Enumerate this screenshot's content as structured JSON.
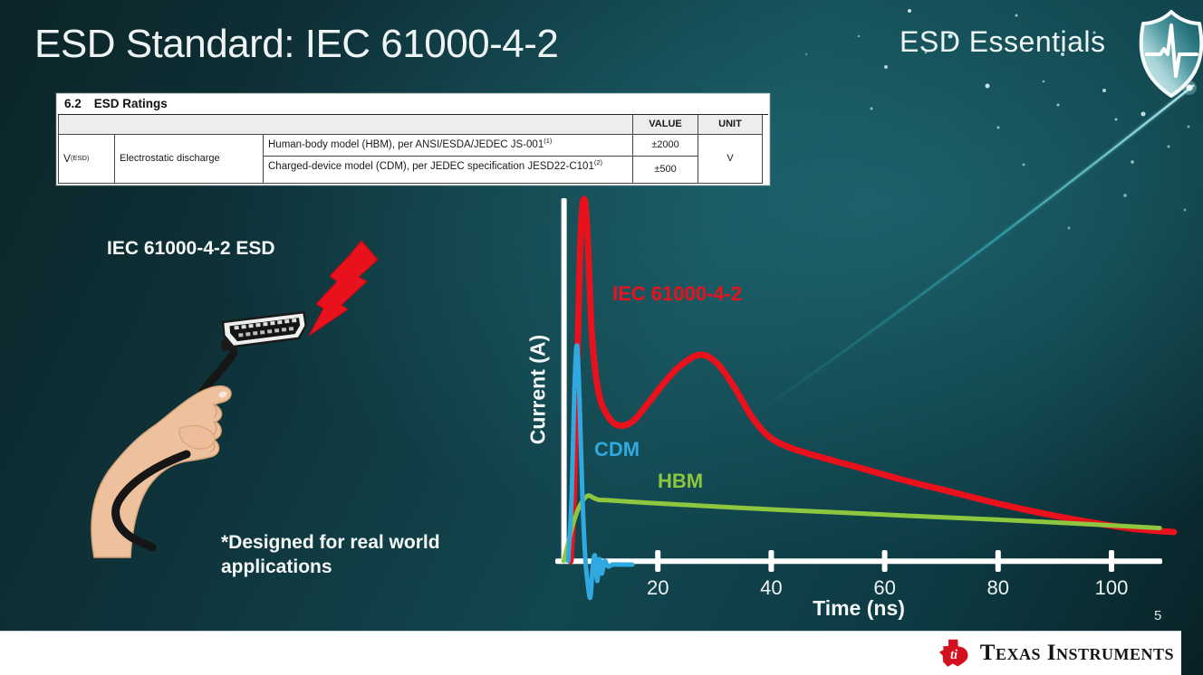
{
  "header": {
    "title": "ESD Standard: IEC 61000-4-2",
    "brand": "ESD Essentials"
  },
  "ratings_table": {
    "section_number": "6.2",
    "section_name": "ESD Ratings",
    "value_header": "VALUE",
    "unit_header": "UNIT",
    "symbol": "V",
    "symbol_sub": "(ESD)",
    "parameter": "Electrostatic discharge",
    "rows": [
      {
        "description": "Human-body model (HBM), per ANSI/ESDA/JEDEC JS-001",
        "description_sup": "(1)",
        "value": "±2000"
      },
      {
        "description": "Charged-device model (CDM), per JEDEC specification JESD22-C101",
        "description_sup": "(2)",
        "value": "±500"
      }
    ],
    "unit": "V"
  },
  "illustration": {
    "caption": "IEC 61000-4-2 ESD",
    "footnote": "*Designed for real world applications"
  },
  "chart_data": {
    "type": "line",
    "title": "",
    "xlabel": "Time (ns)",
    "ylabel": "Current (A)",
    "x_ticks": [
      20,
      40,
      60,
      80,
      100
    ],
    "xlim": [
      0,
      112
    ],
    "ylim": [
      -0.12,
      1.05
    ],
    "y_scale_note": "relative current, y-axis has no tick values",
    "grid": false,
    "legend_position": "inline",
    "series": [
      {
        "name": "IEC 61000-4-2",
        "color": "#e8111c",
        "points": [
          [
            4.6,
            0
          ],
          [
            5.2,
            0.18
          ],
          [
            5.8,
            0.55
          ],
          [
            6.4,
            0.9
          ],
          [
            7,
            1
          ],
          [
            7.6,
            0.9
          ],
          [
            8.4,
            0.62
          ],
          [
            9.5,
            0.47
          ],
          [
            11,
            0.405
          ],
          [
            13,
            0.375
          ],
          [
            15.5,
            0.385
          ],
          [
            18,
            0.43
          ],
          [
            21,
            0.49
          ],
          [
            24,
            0.54
          ],
          [
            27.5,
            0.57
          ],
          [
            30.5,
            0.545
          ],
          [
            33.5,
            0.48
          ],
          [
            36.5,
            0.4
          ],
          [
            39.5,
            0.345
          ],
          [
            43,
            0.315
          ],
          [
            48,
            0.29
          ],
          [
            55,
            0.26
          ],
          [
            63,
            0.225
          ],
          [
            72,
            0.19
          ],
          [
            81,
            0.155
          ],
          [
            90,
            0.125
          ],
          [
            99,
            0.1
          ],
          [
            105,
            0.087
          ],
          [
            111,
            0.08
          ]
        ]
      },
      {
        "name": "CDM",
        "color": "#2fa9e0",
        "points": [
          [
            4.2,
            0
          ],
          [
            4.8,
            0.18
          ],
          [
            5.3,
            0.48
          ],
          [
            5.75,
            0.595
          ],
          [
            6.2,
            0.44
          ],
          [
            6.7,
            0.18
          ],
          [
            7.2,
            0.01
          ],
          [
            7.7,
            -0.07
          ],
          [
            8.1,
            -0.1
          ],
          [
            8.5,
            -0.02
          ],
          [
            8.9,
            0.015
          ],
          [
            9.3,
            -0.055
          ],
          [
            9.7,
            0.005
          ],
          [
            10.1,
            -0.035
          ],
          [
            10.6,
            0
          ],
          [
            11.2,
            -0.015
          ],
          [
            12,
            -0.01
          ],
          [
            13.5,
            -0.01
          ],
          [
            15.5,
            -0.01
          ]
        ]
      },
      {
        "name": "HBM",
        "color": "#8dc63f",
        "points": [
          [
            3.4,
            0
          ],
          [
            4.2,
            0.05
          ],
          [
            5.2,
            0.11
          ],
          [
            6.3,
            0.155
          ],
          [
            7.6,
            0.18
          ],
          [
            8.6,
            0.175
          ],
          [
            9.6,
            0.169
          ],
          [
            11,
            0.168
          ],
          [
            14,
            0.165
          ],
          [
            18,
            0.161
          ],
          [
            25,
            0.155
          ],
          [
            33,
            0.148
          ],
          [
            42,
            0.141
          ],
          [
            52,
            0.134
          ],
          [
            64,
            0.125
          ],
          [
            76,
            0.117
          ],
          [
            88,
            0.108
          ],
          [
            98,
            0.1
          ],
          [
            105,
            0.094
          ],
          [
            108.5,
            0.091
          ]
        ]
      }
    ]
  },
  "footer": {
    "page_number": "5",
    "company": "Texas Instruments"
  }
}
